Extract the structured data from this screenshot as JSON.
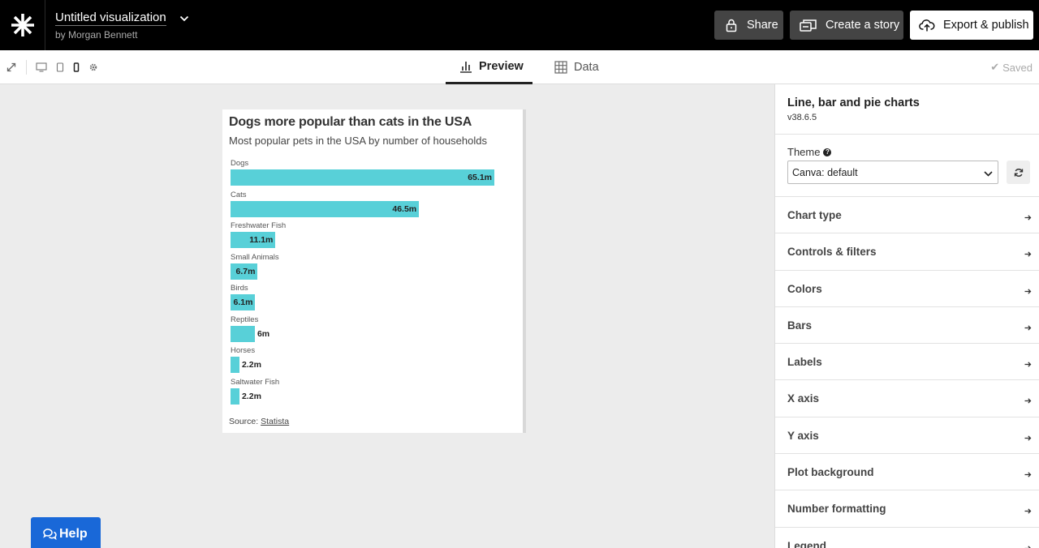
{
  "header": {
    "title": "Untitled visualization",
    "byline": "by Morgan Bennett",
    "share_label": "Share",
    "story_label": "Create a story",
    "export_label": "Export & publish"
  },
  "toolbar": {
    "tabs": [
      {
        "label": "Preview",
        "active": true
      },
      {
        "label": "Data",
        "active": false
      }
    ],
    "status": "Saved"
  },
  "chart_data": {
    "type": "bar",
    "title": "Dogs more popular than cats in the USA",
    "subtitle": "Most popular pets in the USA by number of households",
    "categories": [
      "Dogs",
      "Cats",
      "Freshwater Fish",
      "Small Animals",
      "Birds",
      "Reptiles",
      "Horses",
      "Saltwater Fish"
    ],
    "values": [
      65.1,
      46.5,
      11.1,
      6.7,
      6.1,
      6,
      2.2,
      2.2
    ],
    "value_labels": [
      "65.1m",
      "46.5m",
      "11.1m",
      "6.7m",
      "6.1m",
      "6m",
      "2.2m",
      "2.2m"
    ],
    "unit": "m",
    "bar_color": "#58d0d8",
    "orientation": "horizontal",
    "source_prefix": "Source: ",
    "source_name": "Statista"
  },
  "panel": {
    "title": "Line, bar and pie charts",
    "version": "v38.6.5",
    "theme_label": "Theme",
    "theme_value": "Canva: default",
    "sections": [
      "Chart type",
      "Controls & filters",
      "Colors",
      "Bars",
      "Labels",
      "X axis",
      "Y axis",
      "Plot background",
      "Number formatting",
      "Legend"
    ]
  },
  "help_label": "Help",
  "colors": {
    "topbar": "#000000",
    "help_button": "#1968d8",
    "canvas_background": "#ececec"
  }
}
